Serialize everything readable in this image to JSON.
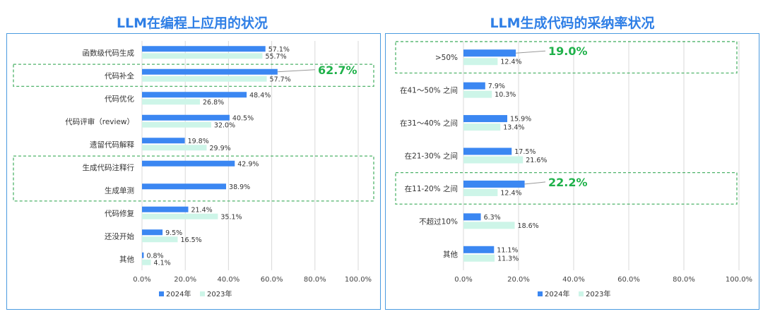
{
  "titles": {
    "left": "LLM在编程上应用的状况",
    "right": "LLM生成代码的采纳率状况"
  },
  "colors": {
    "series_2024": "#3b87f2",
    "series_2023": "#cdf5e8",
    "highlight_text": "#1fb14a",
    "highlight_box": "#4fb36a",
    "grid": "#d9d9d9",
    "title": "#2f7fe6",
    "panel_border": "#4b9be0"
  },
  "chart_data": [
    {
      "type": "bar",
      "orientation": "horizontal",
      "title": "LLM在编程上应用的状况",
      "categories": [
        "函数级代码生成",
        "代码补全",
        "代码优化",
        "代码评审（review）",
        "遗留代码解释",
        "生成代码注释行",
        "生成单测",
        "代码修复",
        "还没开始",
        "其他"
      ],
      "series": [
        {
          "name": "2024年",
          "values": [
            57.1,
            62.7,
            48.4,
            40.5,
            19.8,
            42.9,
            38.9,
            21.4,
            9.5,
            0.8
          ],
          "labels": [
            "57.1%",
            "",
            "48.4%",
            "40.5%",
            "19.8%",
            "42.9%",
            "38.9%",
            "21.4%",
            "9.5%",
            "0.8%"
          ]
        },
        {
          "name": "2023年",
          "values": [
            55.7,
            57.7,
            26.8,
            32.0,
            29.9,
            null,
            null,
            35.1,
            16.5,
            4.1
          ],
          "labels": [
            "55.7%",
            "57.7%",
            "26.8%",
            "32.0%",
            "29.9%",
            "",
            "",
            "35.1%",
            "16.5%",
            "4.1%"
          ]
        }
      ],
      "callouts": [
        {
          "category": "代码补全",
          "text": "62.7%"
        }
      ],
      "highlight_groups": [
        [
          "代码补全"
        ],
        [
          "生成代码注释行",
          "生成单测"
        ]
      ],
      "xlim": [
        0,
        100
      ],
      "xticks": [
        "0.0%",
        "20.0%",
        "40.0%",
        "60.0%",
        "80.0%",
        "100.0%"
      ],
      "grid": true,
      "legend_position": "bottom"
    },
    {
      "type": "bar",
      "orientation": "horizontal",
      "title": "LLM生成代码的采纳率状况",
      "categories": [
        ">50%",
        "在41～50% 之间",
        "在31～40% 之间",
        "在21-30% 之间",
        "在11-20% 之间",
        "不超过10%",
        "其他"
      ],
      "series": [
        {
          "name": "2024年",
          "values": [
            19.0,
            7.9,
            15.9,
            17.5,
            22.2,
            6.3,
            11.1
          ],
          "labels": [
            "",
            "7.9%",
            "15.9%",
            "17.5%",
            "",
            "6.3%",
            "11.1%"
          ]
        },
        {
          "name": "2023年",
          "values": [
            12.4,
            10.3,
            13.4,
            21.6,
            12.4,
            18.6,
            11.3
          ],
          "labels": [
            "12.4%",
            "10.3%",
            "13.4%",
            "21.6%",
            "12.4%",
            "18.6%",
            "11.3%"
          ]
        }
      ],
      "callouts": [
        {
          "category": ">50%",
          "text": "19.0%"
        },
        {
          "category": "在11-20% 之间",
          "text": "22.2%"
        }
      ],
      "highlight_groups": [
        [
          ">50%"
        ],
        [
          "在11-20% 之间"
        ]
      ],
      "xlim": [
        0,
        100
      ],
      "xticks": [
        "0.0%",
        "20.0%",
        "40.0%",
        "60.0%",
        "80.0%",
        "100.0%"
      ],
      "grid": true,
      "legend_position": "bottom"
    }
  ]
}
